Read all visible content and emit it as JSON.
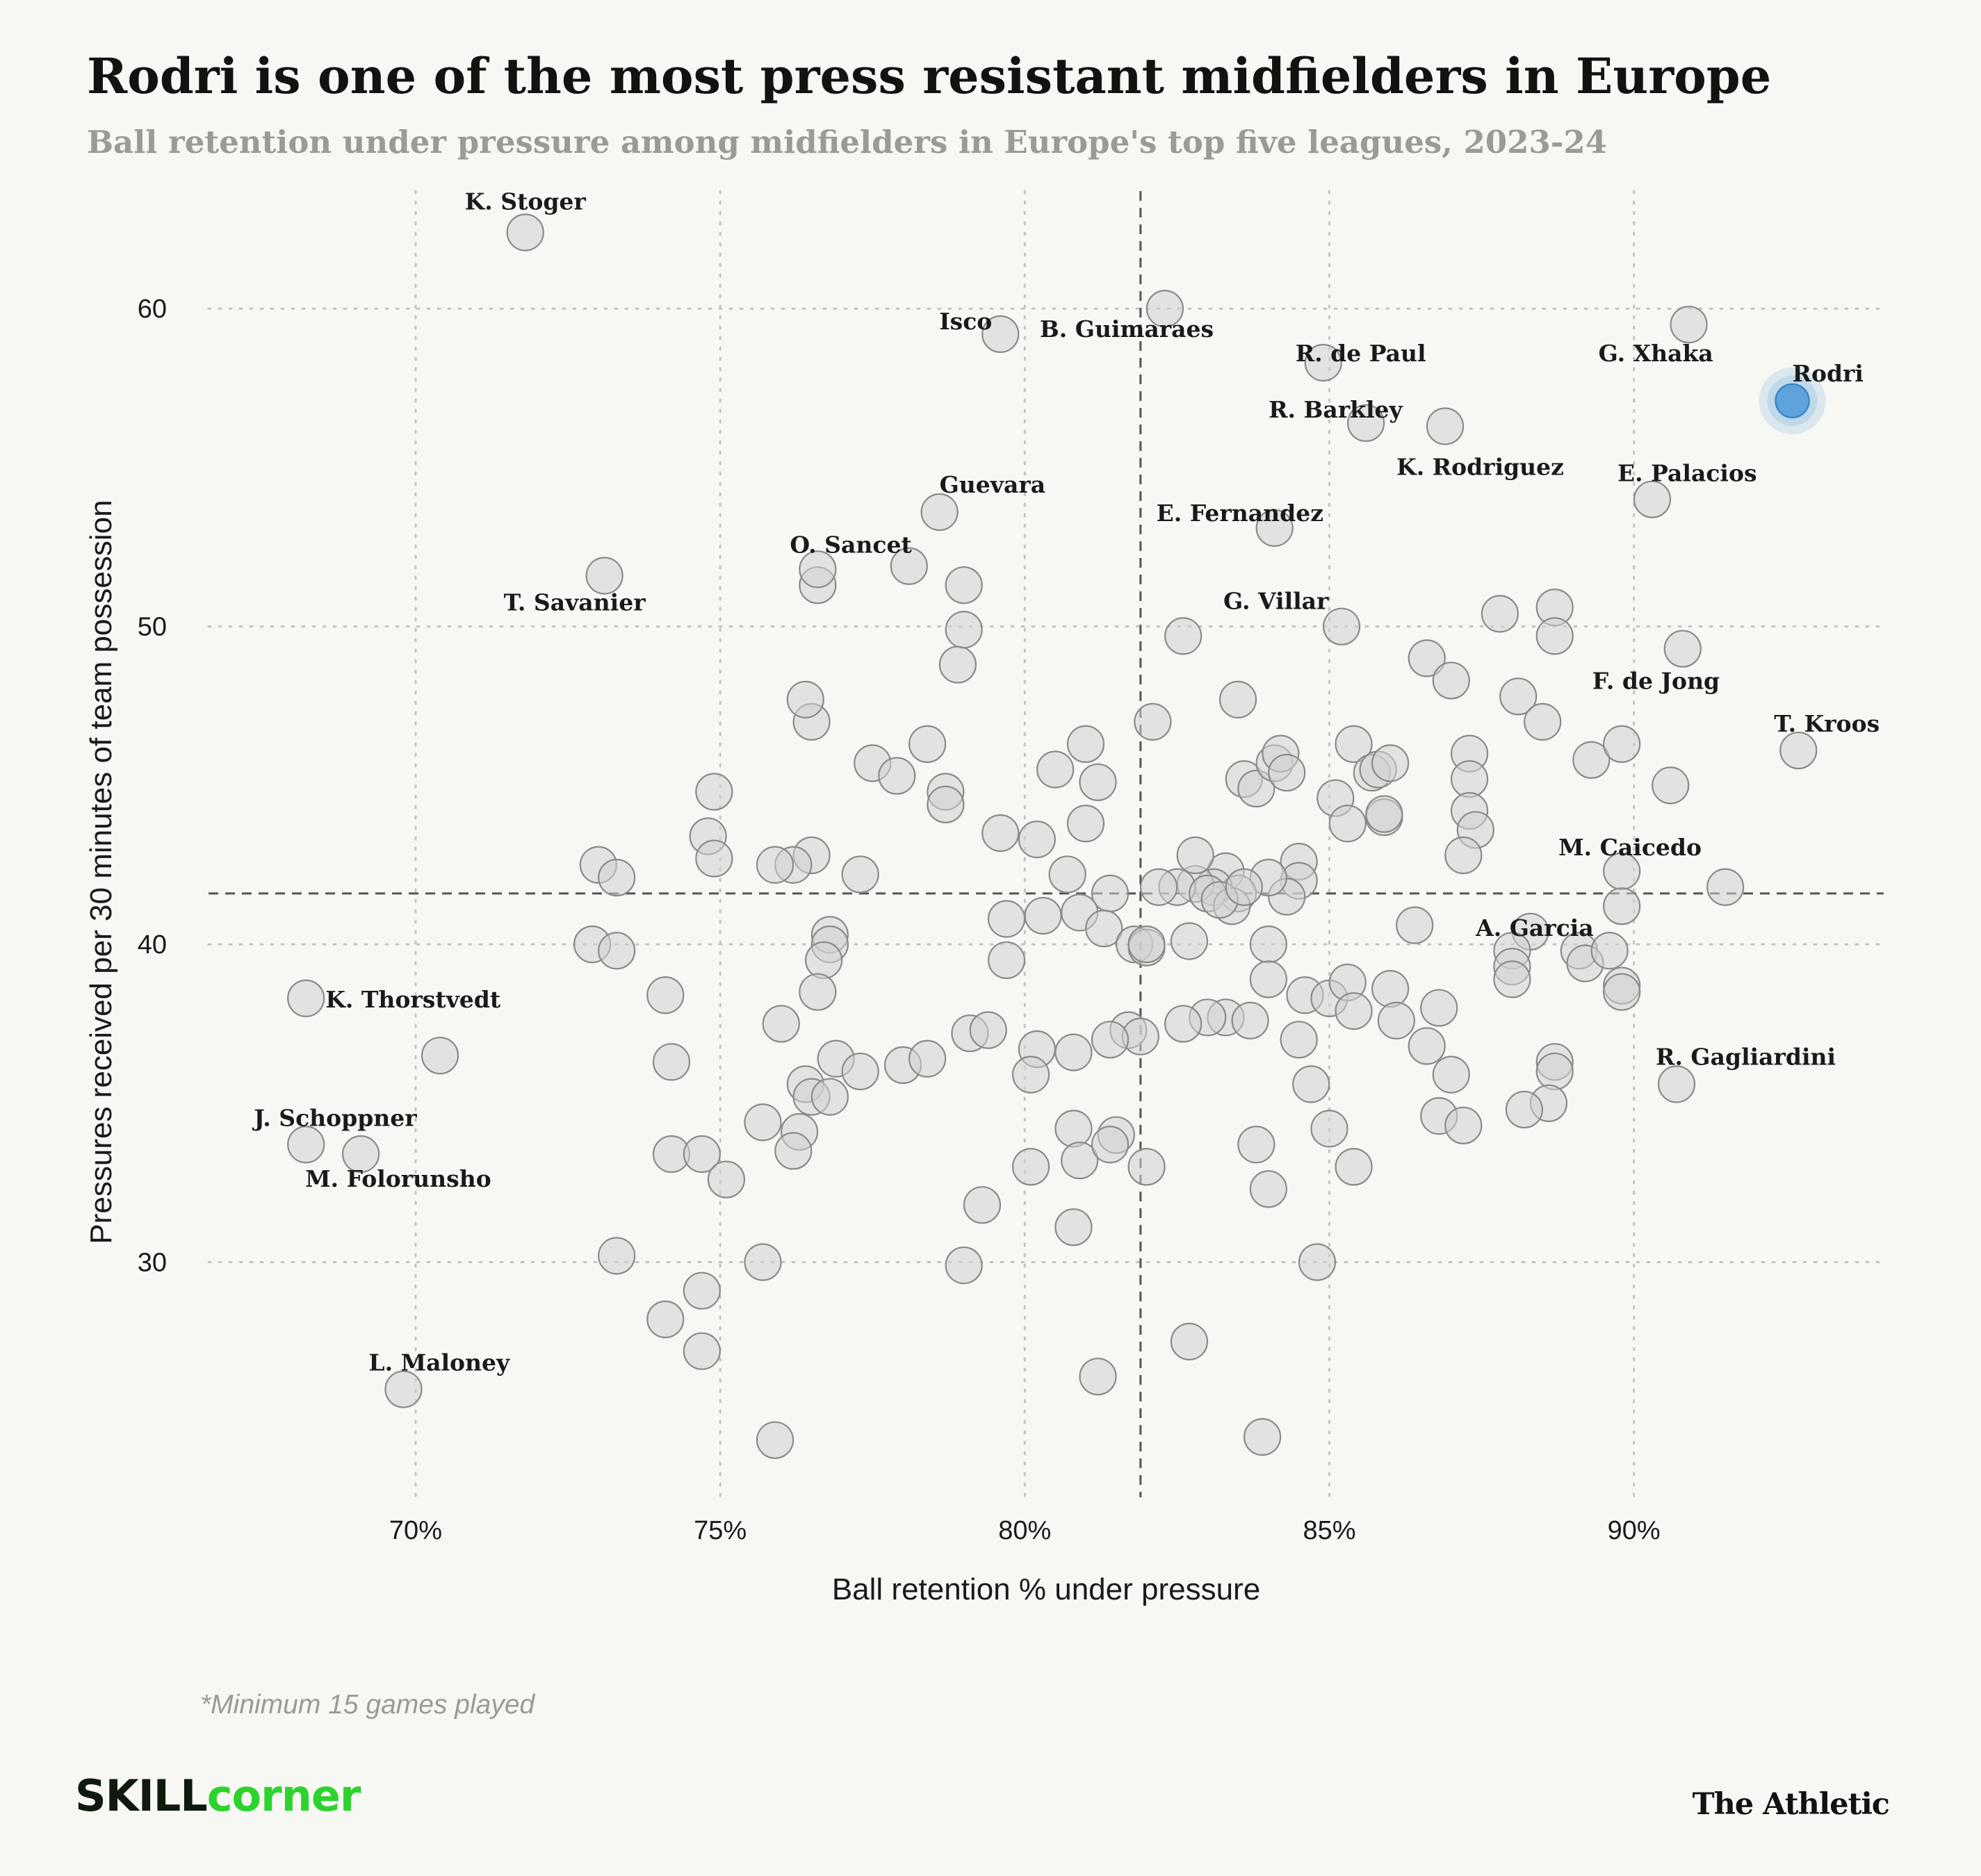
{
  "title": "Rodri is one of the most press resistant midfielders in Europe",
  "subtitle": "Ball retention under pressure among midfielders in Europe's top five leagues, 2023-24",
  "footnote": "*Minimum 15 games played",
  "branding": {
    "left_part1": "SKILL",
    "left_part2": "corner",
    "right": "The Athletic"
  },
  "colors": {
    "background": "#f7f7f3",
    "dot_fill": "#d2d2cf",
    "dot_stroke": "#8a8a87",
    "highlight": "#5ea3dc",
    "grid": "#c4c4c0",
    "ref_line": "#555555"
  },
  "chart_data": {
    "type": "scatter",
    "title": "Rodri is one of the most press resistant midfielders in Europe",
    "xlabel": "Ball retention % under pressure",
    "ylabel": "Pressures received per 30 minutes of team possession",
    "xlim": [
      66.6,
      94.1
    ],
    "ylim": [
      22.6,
      63.7
    ],
    "xticks": [
      70,
      75,
      80,
      85,
      90
    ],
    "xtick_labels": [
      "70%",
      "75%",
      "80%",
      "85%",
      "90%"
    ],
    "yticks": [
      30,
      40,
      50,
      60
    ],
    "ytick_labels": [
      "30",
      "40",
      "50",
      "60"
    ],
    "grid": true,
    "reference_lines": {
      "x": 81.9,
      "y": 41.6
    },
    "highlight": "Rodri",
    "labeled_points": [
      {
        "name": "K. Stoger",
        "x": 71.8,
        "y": 62.4
      },
      {
        "name": "Isco",
        "x": 79.6,
        "y": 59.2
      },
      {
        "name": "B. Guimaraes",
        "x": 82.3,
        "y": 60.0
      },
      {
        "name": "R. de Paul",
        "x": 84.9,
        "y": 58.3
      },
      {
        "name": "G. Xhaka",
        "x": 90.9,
        "y": 59.5
      },
      {
        "name": "Rodri",
        "x": 92.6,
        "y": 57.1
      },
      {
        "name": "R. Barkley",
        "x": 85.6,
        "y": 56.4
      },
      {
        "name": "K. Rodriguez",
        "x": 86.9,
        "y": 56.3
      },
      {
        "name": "E. Palacios",
        "x": 90.3,
        "y": 54.0
      },
      {
        "name": "Guevara",
        "x": 78.6,
        "y": 53.6
      },
      {
        "name": "E. Fernandez",
        "x": 84.1,
        "y": 53.1
      },
      {
        "name": "O. Sancet",
        "x": 76.6,
        "y": 51.8
      },
      {
        "name": "T. Savanier",
        "x": 73.1,
        "y": 51.6
      },
      {
        "name": "G. Villar",
        "x": 85.2,
        "y": 50.0
      },
      {
        "name": "F. de Jong",
        "x": 90.8,
        "y": 49.3
      },
      {
        "name": "T. Kroos",
        "x": 92.7,
        "y": 46.1
      },
      {
        "name": "M. Caicedo",
        "x": 91.5,
        "y": 41.8
      },
      {
        "name": "A. Garcia",
        "x": 89.8,
        "y": 41.2
      },
      {
        "name": "K. Thorstvedt",
        "x": 68.2,
        "y": 38.3
      },
      {
        "name": "R. Gagliardini",
        "x": 90.7,
        "y": 35.6
      },
      {
        "name": "J. Schoppner",
        "x": 68.2,
        "y": 33.7
      },
      {
        "name": "M. Folorunsho",
        "x": 69.1,
        "y": 33.4
      },
      {
        "name": "L. Maloney",
        "x": 69.8,
        "y": 26.0
      }
    ],
    "points": [
      [
        81.0,
        46.3
      ],
      [
        81.2,
        45.1
      ],
      [
        80.5,
        45.5
      ],
      [
        79.6,
        43.5
      ],
      [
        80.2,
        43.3
      ],
      [
        81.0,
        43.8
      ],
      [
        80.7,
        42.2
      ],
      [
        81.4,
        41.6
      ],
      [
        80.3,
        40.9
      ],
      [
        79.7,
        40.8
      ],
      [
        79.7,
        39.5
      ],
      [
        80.9,
        41.0
      ],
      [
        81.3,
        40.5
      ],
      [
        81.8,
        40.0
      ],
      [
        82.0,
        39.9
      ],
      [
        81.7,
        37.3
      ],
      [
        81.9,
        37.1
      ],
      [
        81.4,
        37.0
      ],
      [
        80.8,
        36.6
      ],
      [
        80.2,
        36.7
      ],
      [
        80.1,
        35.9
      ],
      [
        80.8,
        34.2
      ],
      [
        81.5,
        34.0
      ],
      [
        80.9,
        33.2
      ],
      [
        81.4,
        33.7
      ],
      [
        80.1,
        33.0
      ],
      [
        82.0,
        33.0
      ],
      [
        80.8,
        31.1
      ],
      [
        79.3,
        31.8
      ],
      [
        79.0,
        29.9
      ],
      [
        81.2,
        26.4
      ],
      [
        79.1,
        37.2
      ],
      [
        79.4,
        37.3
      ],
      [
        78.9,
        48.8
      ],
      [
        79.0,
        49.9
      ],
      [
        79.0,
        51.3
      ],
      [
        78.1,
        51.9
      ],
      [
        78.4,
        46.3
      ],
      [
        78.7,
        44.8
      ],
      [
        78.7,
        44.4
      ],
      [
        77.5,
        45.7
      ],
      [
        77.9,
        45.3
      ],
      [
        77.3,
        42.2
      ],
      [
        76.8,
        40.3
      ],
      [
        76.8,
        40.0
      ],
      [
        76.7,
        39.5
      ],
      [
        76.6,
        38.5
      ],
      [
        76.5,
        42.8
      ],
      [
        76.5,
        47.0
      ],
      [
        76.4,
        47.7
      ],
      [
        76.6,
        51.3
      ],
      [
        76.2,
        42.5
      ],
      [
        75.9,
        42.5
      ],
      [
        76.0,
        37.5
      ],
      [
        76.4,
        35.6
      ],
      [
        76.5,
        35.2
      ],
      [
        76.3,
        34.1
      ],
      [
        76.2,
        33.5
      ],
      [
        75.7,
        34.4
      ],
      [
        75.7,
        30.0
      ],
      [
        75.9,
        24.4
      ],
      [
        76.9,
        36.4
      ],
      [
        76.8,
        35.2
      ],
      [
        77.3,
        36.0
      ],
      [
        78.0,
        36.2
      ],
      [
        78.4,
        36.4
      ],
      [
        74.9,
        44.8
      ],
      [
        74.8,
        43.4
      ],
      [
        74.9,
        42.7
      ],
      [
        74.2,
        36.3
      ],
      [
        74.1,
        38.4
      ],
      [
        74.2,
        33.4
      ],
      [
        74.7,
        33.4
      ],
      [
        75.1,
        32.6
      ],
      [
        74.7,
        29.1
      ],
      [
        74.7,
        27.2
      ],
      [
        74.1,
        28.2
      ],
      [
        73.3,
        30.2
      ],
      [
        73.0,
        42.5
      ],
      [
        73.3,
        42.1
      ],
      [
        72.9,
        40.0
      ],
      [
        73.3,
        39.8
      ],
      [
        70.4,
        36.5
      ],
      [
        82.1,
        47.0
      ],
      [
        82.6,
        49.7
      ],
      [
        83.5,
        47.7
      ],
      [
        83.6,
        45.2
      ],
      [
        83.8,
        44.9
      ],
      [
        84.1,
        45.7
      ],
      [
        84.2,
        46.0
      ],
      [
        84.3,
        45.4
      ],
      [
        84.5,
        42.6
      ],
      [
        84.5,
        42.0
      ],
      [
        84.3,
        41.5
      ],
      [
        84.0,
        42.1
      ],
      [
        83.3,
        42.3
      ],
      [
        83.5,
        41.6
      ],
      [
        83.1,
        41.8
      ],
      [
        82.8,
        41.9
      ],
      [
        82.5,
        41.8
      ],
      [
        82.8,
        42.8
      ],
      [
        82.2,
        41.8
      ],
      [
        83.0,
        41.6
      ],
      [
        83.4,
        41.2
      ],
      [
        83.2,
        41.4
      ],
      [
        83.6,
        41.8
      ],
      [
        84.0,
        40.0
      ],
      [
        84.0,
        38.9
      ],
      [
        83.3,
        37.7
      ],
      [
        83.7,
        37.6
      ],
      [
        83.0,
        37.7
      ],
      [
        82.6,
        37.5
      ],
      [
        82.7,
        40.1
      ],
      [
        82.0,
        40.0
      ],
      [
        84.5,
        37.0
      ],
      [
        84.7,
        35.6
      ],
      [
        84.6,
        38.4
      ],
      [
        85.0,
        38.3
      ],
      [
        85.3,
        38.8
      ],
      [
        85.4,
        37.9
      ],
      [
        85.0,
        34.2
      ],
      [
        85.4,
        33.0
      ],
      [
        84.0,
        32.3
      ],
      [
        83.8,
        33.7
      ],
      [
        84.8,
        30.0
      ],
      [
        83.9,
        24.5
      ],
      [
        82.7,
        27.5
      ],
      [
        85.1,
        44.6
      ],
      [
        85.3,
        43.8
      ],
      [
        85.4,
        46.3
      ],
      [
        85.7,
        45.4
      ],
      [
        85.8,
        45.5
      ],
      [
        86.0,
        45.7
      ],
      [
        85.9,
        44.0
      ],
      [
        85.9,
        44.1
      ],
      [
        86.0,
        38.6
      ],
      [
        86.1,
        37.6
      ],
      [
        86.4,
        40.6
      ],
      [
        86.6,
        36.8
      ],
      [
        86.8,
        38.0
      ],
      [
        87.0,
        35.9
      ],
      [
        86.8,
        34.6
      ],
      [
        87.2,
        34.3
      ],
      [
        86.6,
        49.0
      ],
      [
        87.0,
        48.3
      ],
      [
        87.3,
        46.0
      ],
      [
        87.3,
        45.2
      ],
      [
        87.3,
        44.2
      ],
      [
        87.4,
        43.6
      ],
      [
        87.2,
        42.8
      ],
      [
        87.8,
        50.4
      ],
      [
        88.1,
        47.8
      ],
      [
        88.5,
        47.0
      ],
      [
        88.7,
        50.6
      ],
      [
        88.7,
        49.7
      ],
      [
        89.3,
        45.8
      ],
      [
        89.8,
        46.3
      ],
      [
        90.6,
        45.0
      ],
      [
        89.8,
        42.3
      ],
      [
        88.3,
        40.4
      ],
      [
        88.0,
        39.8
      ],
      [
        88.0,
        39.3
      ],
      [
        88.0,
        38.9
      ],
      [
        89.1,
        39.8
      ],
      [
        89.2,
        39.4
      ],
      [
        89.6,
        39.8
      ],
      [
        89.8,
        38.7
      ],
      [
        89.8,
        38.5
      ],
      [
        88.7,
        36.3
      ],
      [
        88.7,
        36.0
      ],
      [
        88.6,
        35.0
      ],
      [
        88.2,
        34.8
      ]
    ]
  }
}
